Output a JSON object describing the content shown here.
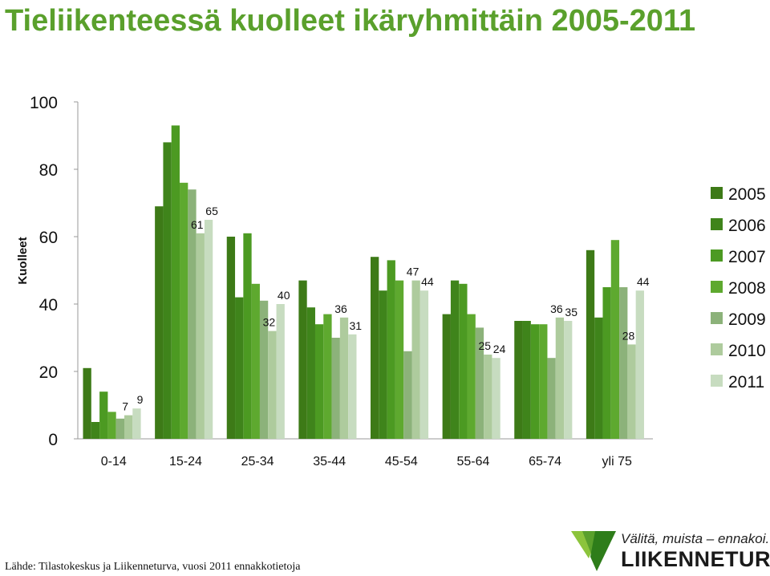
{
  "header": {
    "title": "Tieliikenteessä kuolleet ikäryhmittäin 2005-2011"
  },
  "footer": {
    "source": "Lähde: Tilastokeskus ja Liikenneturva, vuosi 2011 ennakkotietoja"
  },
  "logo": {
    "tagline": "Välitä, muista – ennakoi.",
    "name": "LIIKENNETURVA"
  },
  "colors": {
    "title": "#5aa02c",
    "series": [
      "#3d7a17",
      "#3f841b",
      "#4c9a22",
      "#5ea92f",
      "#8cb27a",
      "#aecb9d",
      "#c7dcc0"
    ]
  },
  "chart_data": {
    "type": "bar",
    "title": "",
    "xlabel": "",
    "ylabel": "Kuolleet",
    "ylim": [
      0,
      100
    ],
    "yticks": [
      0,
      20,
      40,
      60,
      80,
      100
    ],
    "grid": false,
    "legend_position": "right",
    "categories": [
      "0-14",
      "15-24",
      "25-34",
      "35-44",
      "45-54",
      "55-64",
      "65-74",
      "yli 75"
    ],
    "series": [
      {
        "name": "2005",
        "values": [
          21,
          69,
          60,
          47,
          54,
          37,
          35,
          56
        ]
      },
      {
        "name": "2006",
        "values": [
          5,
          88,
          42,
          39,
          44,
          47,
          35,
          36
        ]
      },
      {
        "name": "2007",
        "values": [
          14,
          93,
          61,
          34,
          53,
          46,
          34,
          45
        ]
      },
      {
        "name": "2008",
        "values": [
          8,
          76,
          46,
          37,
          47,
          37,
          34,
          59
        ]
      },
      {
        "name": "2009",
        "values": [
          6,
          74,
          41,
          30,
          26,
          33,
          24,
          45
        ]
      },
      {
        "name": "2010",
        "values": [
          7,
          61,
          32,
          36,
          47,
          25,
          36,
          28
        ]
      },
      {
        "name": "2011",
        "values": [
          9,
          65,
          40,
          31,
          44,
          24,
          35,
          44
        ]
      }
    ],
    "data_labels": [
      {
        "category": 0,
        "series": 5,
        "text": "7"
      },
      {
        "category": 0,
        "series": 6,
        "text": "9"
      },
      {
        "category": 1,
        "series": 5,
        "text": "61"
      },
      {
        "category": 1,
        "series": 6,
        "text": "65"
      },
      {
        "category": 2,
        "series": 5,
        "text": "32"
      },
      {
        "category": 2,
        "series": 6,
        "text": "40"
      },
      {
        "category": 3,
        "series": 5,
        "text": "36"
      },
      {
        "category": 3,
        "series": 6,
        "text": "31"
      },
      {
        "category": 4,
        "series": 5,
        "text": "47"
      },
      {
        "category": 4,
        "series": 6,
        "text": "44"
      },
      {
        "category": 5,
        "series": 5,
        "text": "25"
      },
      {
        "category": 5,
        "series": 6,
        "text": "24"
      },
      {
        "category": 6,
        "series": 5,
        "text": "36"
      },
      {
        "category": 6,
        "series": 6,
        "text": "35"
      },
      {
        "category": 7,
        "series": 5,
        "text": "28"
      },
      {
        "category": 7,
        "series": 6,
        "text": "44"
      }
    ]
  }
}
